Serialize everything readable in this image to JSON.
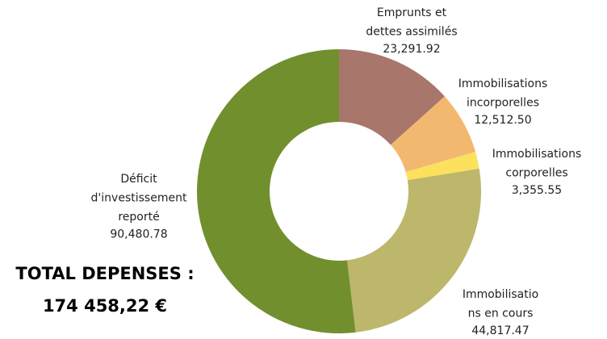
{
  "chart_data": {
    "type": "donut",
    "categories": [
      [
        "Emprunts et",
        "dettes assimilés"
      ],
      [
        "Immobilisations",
        "incorporelles"
      ],
      [
        "Immobilisations",
        "corporelles"
      ],
      [
        "Immobilisatio",
        "ns en cours"
      ],
      [
        "Déficit",
        "d'investissement",
        "reporté"
      ]
    ],
    "values": [
      23291.92,
      12512.5,
      3355.55,
      44817.47,
      90480.78
    ],
    "value_labels": [
      "23,291.92",
      "12,512.50",
      "3,355.55",
      "44,817.47",
      "90,480.78"
    ],
    "colors": [
      "#a8766a",
      "#f3b86f",
      "#fce15c",
      "#bdb76c",
      "#728f2e"
    ],
    "annotations": [
      "TOTAL DEPENSES :",
      "174 458,22 €"
    ]
  }
}
